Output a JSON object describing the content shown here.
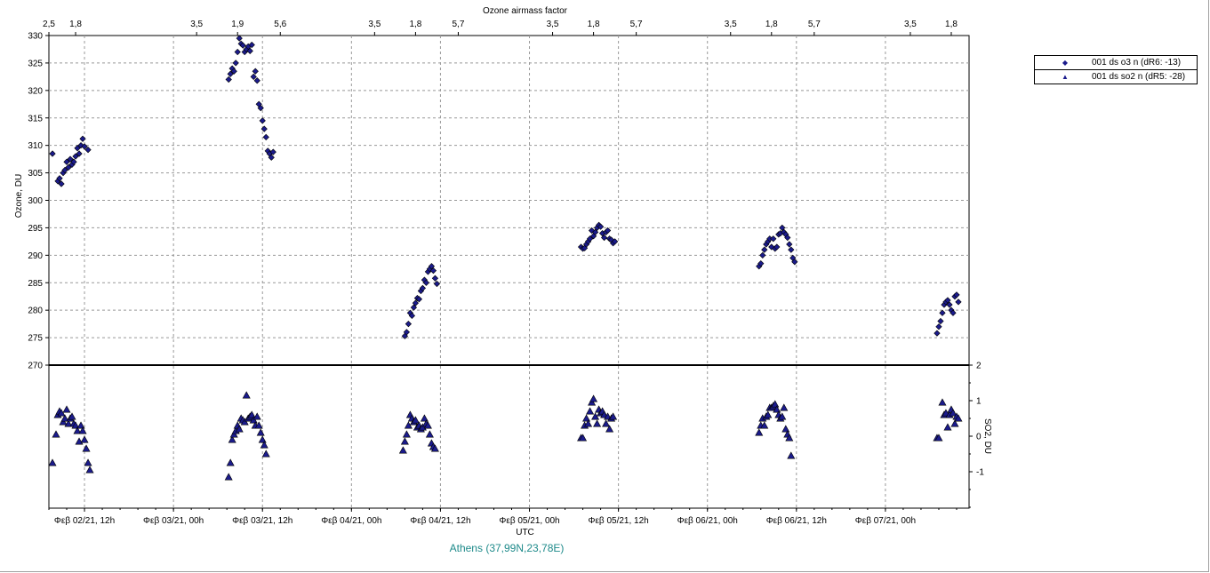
{
  "chart_data": {
    "type": "scatter",
    "top_axis_title": "Ozone airmass factor",
    "top_axis_ticks": [
      {
        "label": "2,5",
        "x": 0.0
      },
      {
        "label": "1,8",
        "x": 0.15
      },
      {
        "label": "3,5",
        "x": 0.83
      },
      {
        "label": "1,9",
        "x": 1.06
      },
      {
        "label": "5,6",
        "x": 1.3
      },
      {
        "label": "3,5",
        "x": 1.83
      },
      {
        "label": "1,8",
        "x": 2.06
      },
      {
        "label": "5,7",
        "x": 2.3
      },
      {
        "label": "3,5",
        "x": 2.83
      },
      {
        "label": "1,8",
        "x": 3.06
      },
      {
        "label": "5,7",
        "x": 3.3
      },
      {
        "label": "3,5",
        "x": 3.83
      },
      {
        "label": "1,8",
        "x": 4.06
      },
      {
        "label": "5,7",
        "x": 4.3
      },
      {
        "label": "3,5",
        "x": 4.84
      },
      {
        "label": "1,8",
        "x": 5.07
      }
    ],
    "xlabel": "UTC",
    "x_ticks": [
      {
        "label": "Φεβ 02/21, 12h",
        "x": 0.2
      },
      {
        "label": "Φεβ 03/21, 00h",
        "x": 0.7
      },
      {
        "label": "Φεβ 03/21, 12h",
        "x": 1.2
      },
      {
        "label": "Φεβ 04/21, 00h",
        "x": 1.7
      },
      {
        "label": "Φεβ 04/21, 12h",
        "x": 2.2
      },
      {
        "label": "Φεβ 05/21, 00h",
        "x": 2.7
      },
      {
        "label": "Φεβ 05/21, 12h",
        "x": 3.2
      },
      {
        "label": "Φεβ 06/21, 00h",
        "x": 3.7
      },
      {
        "label": "Φεβ 06/21, 12h",
        "x": 4.2
      },
      {
        "label": "Φεβ 07/21, 00h",
        "x": 4.7
      }
    ],
    "xlim": [
      0,
      5.17
    ],
    "top_panel": {
      "ylabel": "Ozone, DU",
      "ylim": [
        270,
        330
      ],
      "yticks": [
        270,
        275,
        280,
        285,
        290,
        295,
        300,
        305,
        310,
        315,
        320,
        325,
        330
      ]
    },
    "bottom_panel": {
      "ylabel": "SO2, DU",
      "ylim": [
        -2,
        2
      ],
      "yticks": [
        -1,
        0,
        1,
        2
      ]
    },
    "grid": true,
    "legend_placement": "right",
    "series": [
      {
        "name": "001 ds o3  n (dR6: -13)",
        "marker": "diamond",
        "panel": "top",
        "color": "#1b1b8c",
        "points": [
          [
            0.02,
            308.5
          ],
          [
            0.05,
            303.5
          ],
          [
            0.06,
            304
          ],
          [
            0.07,
            303
          ],
          [
            0.08,
            305
          ],
          [
            0.09,
            305.5
          ],
          [
            0.1,
            307
          ],
          [
            0.11,
            306
          ],
          [
            0.12,
            307.5
          ],
          [
            0.13,
            306.5
          ],
          [
            0.14,
            307
          ],
          [
            0.15,
            308
          ],
          [
            0.16,
            309.5
          ],
          [
            0.17,
            308.5
          ],
          [
            0.18,
            310
          ],
          [
            0.19,
            311.2
          ],
          [
            0.2,
            309.8
          ],
          [
            0.22,
            309.2
          ],
          [
            1.01,
            322
          ],
          [
            1.02,
            323
          ],
          [
            1.03,
            324
          ],
          [
            1.04,
            323.5
          ],
          [
            1.05,
            325
          ],
          [
            1.06,
            327
          ],
          [
            1.07,
            329.5
          ],
          [
            1.08,
            328.5
          ],
          [
            1.09,
            328.2
          ],
          [
            1.1,
            327
          ],
          [
            1.11,
            327.5
          ],
          [
            1.12,
            328
          ],
          [
            1.13,
            327.2
          ],
          [
            1.14,
            328.3
          ],
          [
            1.15,
            322.5
          ],
          [
            1.16,
            323.5
          ],
          [
            1.17,
            321.8
          ],
          [
            1.18,
            317.5
          ],
          [
            1.19,
            316.8
          ],
          [
            1.2,
            314.5
          ],
          [
            1.21,
            313
          ],
          [
            1.22,
            311.5
          ],
          [
            1.23,
            309
          ],
          [
            1.24,
            308.5
          ],
          [
            1.25,
            307.8
          ],
          [
            1.26,
            308.8
          ],
          [
            2.0,
            275.3
          ],
          [
            2.01,
            276
          ],
          [
            2.02,
            277.5
          ],
          [
            2.03,
            279.5
          ],
          [
            2.04,
            279
          ],
          [
            2.05,
            280.5
          ],
          [
            2.06,
            281.3
          ],
          [
            2.07,
            282.2
          ],
          [
            2.08,
            282
          ],
          [
            2.09,
            283.5
          ],
          [
            2.1,
            284
          ],
          [
            2.11,
            285.5
          ],
          [
            2.12,
            285
          ],
          [
            2.13,
            287
          ],
          [
            2.14,
            287.5
          ],
          [
            2.15,
            288
          ],
          [
            2.16,
            287.2
          ],
          [
            2.17,
            285.8
          ],
          [
            2.18,
            284.8
          ],
          [
            2.99,
            291.5
          ],
          [
            3.0,
            291.2
          ],
          [
            3.01,
            291.3
          ],
          [
            3.02,
            292
          ],
          [
            3.03,
            292.5
          ],
          [
            3.04,
            293
          ],
          [
            3.05,
            294.5
          ],
          [
            3.06,
            293.5
          ],
          [
            3.07,
            294.2
          ],
          [
            3.08,
            295
          ],
          [
            3.09,
            295.5
          ],
          [
            3.1,
            295.2
          ],
          [
            3.11,
            294
          ],
          [
            3.12,
            293.2
          ],
          [
            3.13,
            294.2
          ],
          [
            3.14,
            294.5
          ],
          [
            3.15,
            293
          ],
          [
            3.16,
            292.8
          ],
          [
            3.17,
            292.2
          ],
          [
            3.18,
            292.5
          ],
          [
            3.99,
            288
          ],
          [
            4.0,
            288.5
          ],
          [
            4.01,
            290
          ],
          [
            4.02,
            291
          ],
          [
            4.03,
            292
          ],
          [
            4.04,
            292.5
          ],
          [
            4.05,
            293
          ],
          [
            4.06,
            291.5
          ],
          [
            4.07,
            293
          ],
          [
            4.08,
            291.2
          ],
          [
            4.09,
            291.5
          ],
          [
            4.1,
            293.8
          ],
          [
            4.11,
            294
          ],
          [
            4.12,
            295
          ],
          [
            4.13,
            294.2
          ],
          [
            4.14,
            293.8
          ],
          [
            4.15,
            293.2
          ],
          [
            4.16,
            292
          ],
          [
            4.17,
            291
          ],
          [
            4.18,
            289.5
          ],
          [
            4.19,
            288.8
          ],
          [
            4.99,
            275.8
          ],
          [
            5.0,
            277
          ],
          [
            5.01,
            278
          ],
          [
            5.02,
            279.5
          ],
          [
            5.03,
            281
          ],
          [
            5.04,
            281.5
          ],
          [
            5.05,
            281.8
          ],
          [
            5.06,
            281
          ],
          [
            5.07,
            280
          ],
          [
            5.08,
            279.5
          ],
          [
            5.09,
            282.5
          ],
          [
            5.1,
            282.8
          ],
          [
            5.11,
            281.5
          ]
        ]
      },
      {
        "name": "001 ds so2 n (dR5: -28)",
        "marker": "triangle",
        "panel": "bottom",
        "color": "#1b1b8c",
        "points": [
          [
            0.02,
            -0.75
          ],
          [
            0.04,
            0.05
          ],
          [
            0.05,
            0.6
          ],
          [
            0.06,
            0.7
          ],
          [
            0.07,
            0.65
          ],
          [
            0.08,
            0.4
          ],
          [
            0.09,
            0.5
          ],
          [
            0.1,
            0.75
          ],
          [
            0.11,
            0.35
          ],
          [
            0.12,
            0.5
          ],
          [
            0.13,
            0.55
          ],
          [
            0.14,
            0.35
          ],
          [
            0.15,
            0.3
          ],
          [
            0.16,
            0.15
          ],
          [
            0.17,
            -0.15
          ],
          [
            0.18,
            0.3
          ],
          [
            0.19,
            0.15
          ],
          [
            0.2,
            -0.1
          ],
          [
            0.21,
            -0.35
          ],
          [
            0.22,
            -0.75
          ],
          [
            0.23,
            -0.95
          ],
          [
            1.01,
            -1.15
          ],
          [
            1.02,
            -0.75
          ],
          [
            1.03,
            -0.1
          ],
          [
            1.04,
            0.05
          ],
          [
            1.05,
            0.15
          ],
          [
            1.06,
            0.3
          ],
          [
            1.07,
            0.2
          ],
          [
            1.08,
            0.5
          ],
          [
            1.09,
            0.45
          ],
          [
            1.1,
            0.4
          ],
          [
            1.11,
            1.15
          ],
          [
            1.12,
            0.5
          ],
          [
            1.13,
            0.55
          ],
          [
            1.14,
            0.6
          ],
          [
            1.15,
            0.45
          ],
          [
            1.16,
            0.3
          ],
          [
            1.17,
            0.55
          ],
          [
            1.18,
            0.3
          ],
          [
            1.19,
            0.1
          ],
          [
            1.2,
            -0.1
          ],
          [
            1.21,
            -0.25
          ],
          [
            1.22,
            -0.5
          ],
          [
            1.99,
            -0.4
          ],
          [
            2.0,
            -0.15
          ],
          [
            2.01,
            0.05
          ],
          [
            2.02,
            0.3
          ],
          [
            2.03,
            0.6
          ],
          [
            2.04,
            0.5
          ],
          [
            2.05,
            0.4
          ],
          [
            2.06,
            0.45
          ],
          [
            2.07,
            0.25
          ],
          [
            2.08,
            0.3
          ],
          [
            2.09,
            0.2
          ],
          [
            2.1,
            0.25
          ],
          [
            2.11,
            0.5
          ],
          [
            2.12,
            0.35
          ],
          [
            2.13,
            0.3
          ],
          [
            2.14,
            0.05
          ],
          [
            2.15,
            -0.2
          ],
          [
            2.16,
            -0.3
          ],
          [
            2.17,
            -0.35
          ],
          [
            2.99,
            -0.05
          ],
          [
            3.0,
            -0.05
          ],
          [
            3.01,
            0.3
          ],
          [
            3.02,
            0.5
          ],
          [
            3.03,
            0.35
          ],
          [
            3.04,
            0.7
          ],
          [
            3.05,
            0.95
          ],
          [
            3.06,
            1.05
          ],
          [
            3.07,
            0.55
          ],
          [
            3.08,
            0.35
          ],
          [
            3.09,
            0.75
          ],
          [
            3.1,
            0.65
          ],
          [
            3.11,
            0.7
          ],
          [
            3.12,
            0.6
          ],
          [
            3.13,
            0.35
          ],
          [
            3.14,
            0.55
          ],
          [
            3.15,
            0.2
          ],
          [
            3.16,
            0.5
          ],
          [
            3.17,
            0.55
          ],
          [
            3.99,
            0.1
          ],
          [
            4.0,
            0.3
          ],
          [
            4.01,
            0.5
          ],
          [
            4.02,
            0.3
          ],
          [
            4.03,
            0.55
          ],
          [
            4.04,
            0.6
          ],
          [
            4.05,
            0.8
          ],
          [
            4.06,
            0.8
          ],
          [
            4.07,
            0.85
          ],
          [
            4.08,
            0.9
          ],
          [
            4.09,
            0.75
          ],
          [
            4.1,
            0.6
          ],
          [
            4.11,
            0.5
          ],
          [
            4.12,
            0.55
          ],
          [
            4.13,
            0.8
          ],
          [
            4.14,
            0.2
          ],
          [
            4.15,
            0.05
          ],
          [
            4.16,
            -0.05
          ],
          [
            4.17,
            -0.55
          ],
          [
            4.99,
            -0.05
          ],
          [
            5.0,
            -0.05
          ],
          [
            5.02,
            0.95
          ],
          [
            5.03,
            0.6
          ],
          [
            5.04,
            0.65
          ],
          [
            5.05,
            0.25
          ],
          [
            5.06,
            0.6
          ],
          [
            5.07,
            0.75
          ],
          [
            5.08,
            0.65
          ],
          [
            5.09,
            0.35
          ],
          [
            5.1,
            0.55
          ],
          [
            5.11,
            0.5
          ]
        ]
      }
    ]
  },
  "location_label": "Athens (37,99N,23,78E)"
}
